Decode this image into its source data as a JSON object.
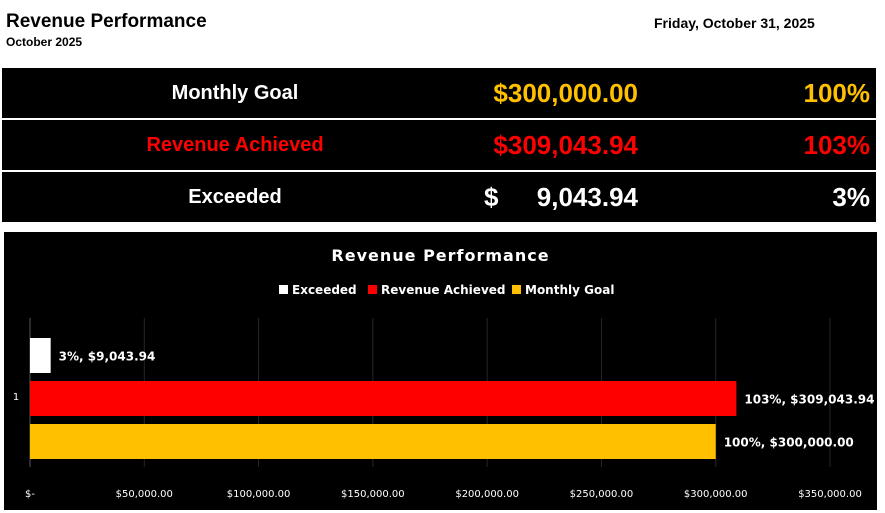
{
  "header": {
    "title": "Revenue Performance",
    "subtitle": "October 2025",
    "date": "Friday, October 31, 2025"
  },
  "kpis": [
    {
      "label": "Monthly Goal",
      "amount": "$300,000.00",
      "percent": "100%",
      "label_color": "#ffffff",
      "value_color": "#ffc000"
    },
    {
      "label": "Revenue Achieved",
      "amount": "$309,043.94",
      "percent": "103%",
      "label_color": "#ff0000",
      "value_color": "#ff0000"
    },
    {
      "label": "Exceeded",
      "currency": "$",
      "amount": "9,043.94",
      "percent": "3%",
      "label_color": "#ffffff",
      "value_color": "#ffffff"
    }
  ],
  "colors": {
    "background": "#000000",
    "exceeded": "#ffffff",
    "revenue_achieved": "#ff0000",
    "monthly_goal": "#ffc000",
    "gridline": "#262626"
  },
  "chart_data": {
    "type": "bar",
    "orientation": "horizontal",
    "title": "Revenue Performance",
    "categories": [
      "1"
    ],
    "series": [
      {
        "name": "Exceeded",
        "values": [
          9043.94
        ],
        "label": "3%, $9,043.94",
        "color": "#ffffff"
      },
      {
        "name": "Revenue Achieved",
        "values": [
          309043.94
        ],
        "label": "103%, $309,043.94",
        "color": "#ff0000"
      },
      {
        "name": "Monthly Goal",
        "values": [
          300000.0
        ],
        "label": "100%, $300,000.00",
        "color": "#ffc000"
      }
    ],
    "xlim": [
      0,
      350000
    ],
    "xticks": [
      0,
      50000,
      100000,
      150000,
      200000,
      250000,
      300000,
      350000
    ],
    "xtick_labels": [
      "$-",
      "$50,000.00",
      "$100,000.00",
      "$150,000.00",
      "$200,000.00",
      "$250,000.00",
      "$300,000.00",
      "$350,000.00"
    ],
    "legend_position": "top",
    "grid": true
  }
}
